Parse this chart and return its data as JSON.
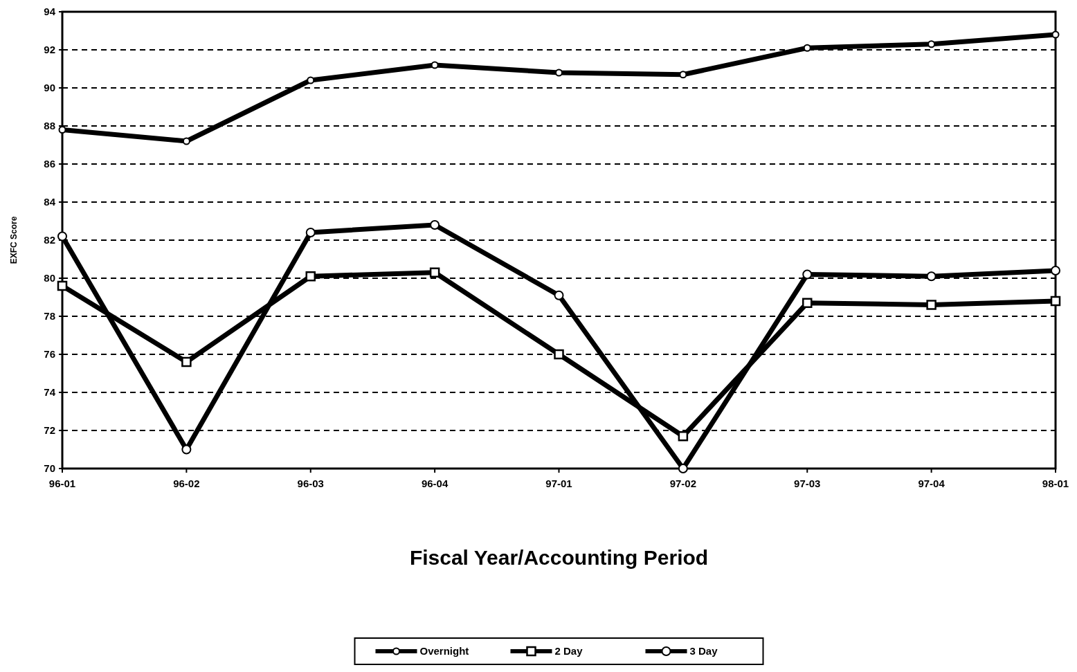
{
  "chart_data": {
    "type": "line",
    "xlabel": "Fiscal Year/Accounting Period",
    "ylabel": "EXFC Score",
    "categories": [
      "96-01",
      "96-02",
      "96-03",
      "96-04",
      "97-01",
      "97-02",
      "97-03",
      "97-04",
      "98-01"
    ],
    "series": [
      {
        "name": "Overnight",
        "color": "#000000",
        "marker": "circle",
        "values": [
          87.8,
          87.2,
          90.4,
          91.2,
          90.8,
          90.7,
          92.1,
          92.3,
          92.8
        ]
      },
      {
        "name": "2 Day",
        "color": "#000000",
        "marker": "square",
        "values": [
          79.6,
          75.6,
          80.1,
          80.3,
          76.0,
          71.7,
          78.7,
          78.6,
          78.8
        ]
      },
      {
        "name": "3 Day",
        "color": "#000000",
        "marker": "circle",
        "values": [
          82.2,
          71.0,
          82.4,
          82.8,
          79.1,
          70.0,
          80.2,
          80.1,
          80.4
        ]
      }
    ],
    "ylim": [
      70,
      94
    ],
    "yticks": [
      70,
      72,
      74,
      76,
      78,
      80,
      82,
      84,
      86,
      88,
      90,
      92,
      94
    ],
    "grid": "y",
    "legend": "bottom"
  }
}
